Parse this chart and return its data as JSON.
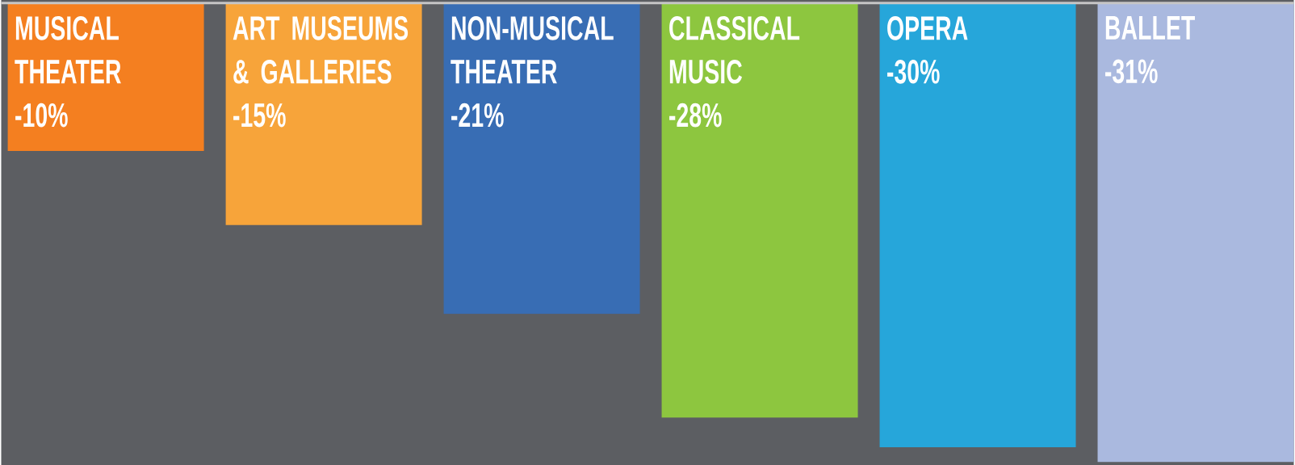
{
  "chart_data": {
    "type": "bar",
    "categories": [
      "MUSICAL THEATER",
      "ART MUSEUMS & GALLERIES",
      "NON-MUSICAL THEATER",
      "CLASSICAL MUSIC",
      "OPERA",
      "BALLET"
    ],
    "values": [
      -10,
      -15,
      -21,
      -28,
      -30,
      -31
    ],
    "colors": [
      "#f47f20",
      "#f7a43a",
      "#386db4",
      "#8dc63f",
      "#26a6da",
      "#aab9df"
    ],
    "value_labels": [
      "-10%",
      "-15%",
      "-21%",
      "-28%",
      "-30%",
      "-31%"
    ]
  }
}
